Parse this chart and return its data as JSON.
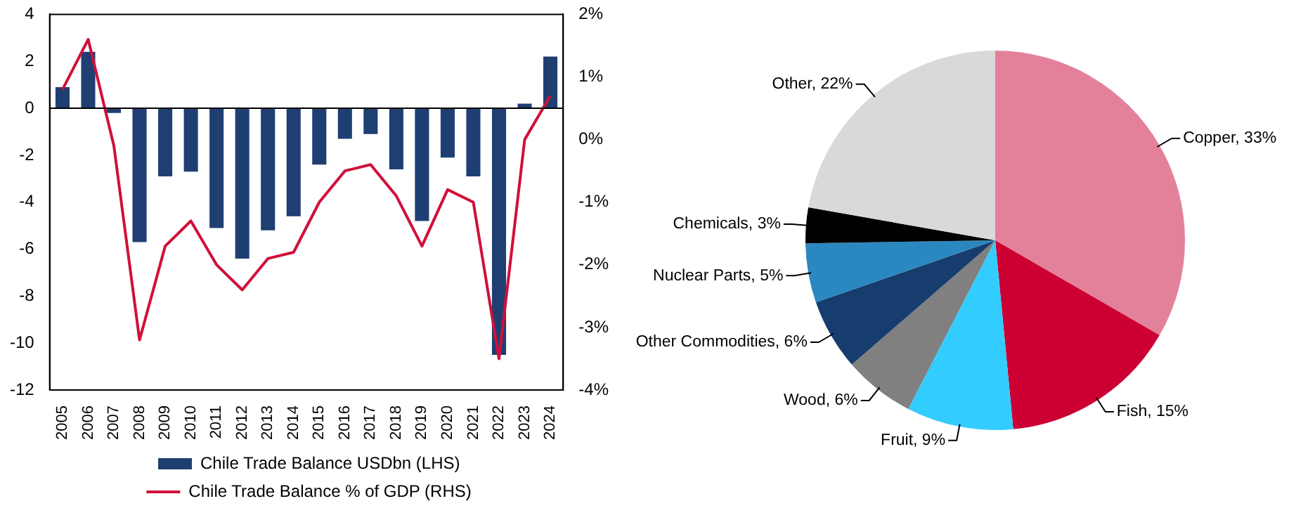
{
  "chart_data": [
    {
      "type": "bar",
      "categories": [
        "2005",
        "2006",
        "2007",
        "2008",
        "2009",
        "2010",
        "2011",
        "2012",
        "2013",
        "2014",
        "2015",
        "2016",
        "2017",
        "2018",
        "2019",
        "2020",
        "2021",
        "2022",
        "2023",
        "2024"
      ],
      "series": [
        {
          "name": "Chile Trade Balance USDbn (LHS)",
          "type": "bar",
          "color": "#1f3f73",
          "values": [
            0.9,
            2.4,
            -0.2,
            -5.7,
            -2.9,
            -2.7,
            -5.1,
            -6.4,
            -5.2,
            -4.6,
            -2.4,
            -1.3,
            -1.1,
            -2.6,
            -4.8,
            -2.1,
            -2.9,
            -10.5,
            0.2,
            2.2
          ]
        },
        {
          "name": "Chile Trade Balance % of GDP (RHS)",
          "type": "line",
          "axis": "y2",
          "color": "#d0103a",
          "values": [
            0.8,
            1.6,
            -0.1,
            -3.2,
            -1.7,
            -1.3,
            -2.0,
            -2.4,
            -1.9,
            -1.8,
            -1.0,
            -0.5,
            -0.4,
            -0.9,
            -1.7,
            -0.8,
            -1.0,
            -3.5,
            0.0,
            0.7
          ]
        }
      ],
      "ylim": [
        -12,
        4
      ],
      "yticks": [
        -12,
        -10,
        -8,
        -6,
        -4,
        -2,
        0,
        2,
        4
      ],
      "y2lim": [
        -4,
        2
      ],
      "y2ticks": [
        {
          "value": -4,
          "label": "-4%"
        },
        {
          "value": -3,
          "label": "-3%"
        },
        {
          "value": -2,
          "label": "-2%"
        },
        {
          "value": -1,
          "label": "-1%"
        },
        {
          "value": 0,
          "label": "0%"
        },
        {
          "value": 1,
          "label": "1%"
        },
        {
          "value": 2,
          "label": "2%"
        }
      ],
      "grid": false,
      "ref_lines": [
        {
          "axis": "y",
          "value": 0,
          "color": "#000000"
        }
      ],
      "legend": "bottom",
      "marker": "none",
      "line_style": "solid"
    },
    {
      "type": "pie",
      "categories": [
        "Copper",
        "Fish",
        "Fruit",
        "Wood",
        "Other Commodities",
        "Nuclear Parts",
        "Chemicals",
        "Other"
      ],
      "values": [
        33,
        15,
        9,
        6,
        6,
        5,
        3,
        22
      ],
      "colors": [
        "#e3819b",
        "#cc0033",
        "#33ccff",
        "#808080",
        "#163d6e",
        "#2b87c0",
        "#000000",
        "#d9d9d9"
      ],
      "value_labels": [
        "33%",
        "15%",
        "9%",
        "6%",
        "6%",
        "5%",
        "3%",
        "22%"
      ],
      "legend": false
    }
  ]
}
